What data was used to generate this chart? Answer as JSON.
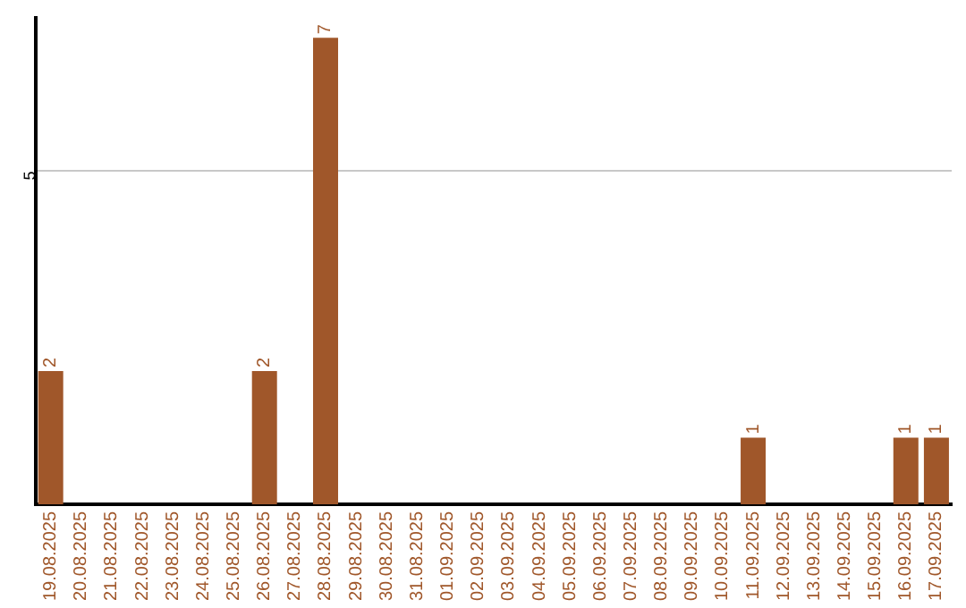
{
  "chart_data": {
    "type": "bar",
    "categories": [
      "19.08.2025",
      "20.08.2025",
      "21.08.2025",
      "22.08.2025",
      "23.08.2025",
      "24.08.2025",
      "25.08.2025",
      "26.08.2025",
      "27.08.2025",
      "28.08.2025",
      "29.08.2025",
      "30.08.2025",
      "31.08.2025",
      "01.09.2025",
      "02.09.2025",
      "03.09.2025",
      "04.09.2025",
      "05.09.2025",
      "06.09.2025",
      "07.09.2025",
      "08.09.2025",
      "09.09.2025",
      "10.09.2025",
      "11.09.2025",
      "12.09.2025",
      "13.09.2025",
      "14.09.2025",
      "15.09.2025",
      "16.09.2025",
      "17.09.2025"
    ],
    "values": [
      2,
      0,
      0,
      0,
      0,
      0,
      0,
      2,
      0,
      7,
      0,
      0,
      0,
      0,
      0,
      0,
      0,
      0,
      0,
      0,
      0,
      0,
      0,
      1,
      0,
      0,
      0,
      0,
      1,
      1
    ],
    "value_labels": [
      "2",
      null,
      null,
      null,
      null,
      null,
      null,
      "2",
      null,
      "7",
      null,
      null,
      null,
      null,
      null,
      null,
      null,
      null,
      null,
      null,
      null,
      null,
      null,
      "1",
      null,
      null,
      null,
      null,
      "1",
      "1"
    ],
    "color": "#a0572a",
    "ylim": [
      0,
      7.3
    ],
    "yticks": [
      5
    ],
    "grid": "y",
    "legend": false
  }
}
